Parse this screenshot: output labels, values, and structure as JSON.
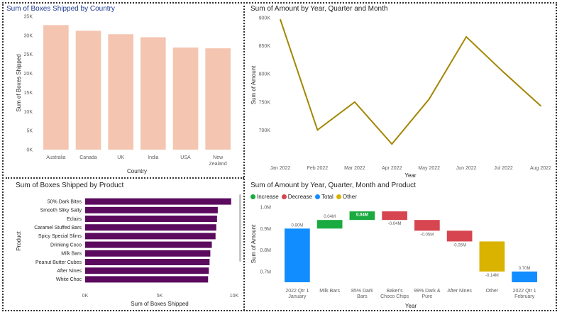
{
  "chart_data": [
    {
      "id": "country",
      "type": "bar",
      "title": "Sum of Boxes Shipped by Country",
      "xlabel": "Country",
      "ylabel": "Sum of Boxes Shipped",
      "categories": [
        "Australia",
        "Canada",
        "UK",
        "India",
        "USA",
        "New Zealand"
      ],
      "values": [
        32700,
        31200,
        30300,
        29500,
        26800,
        26600
      ],
      "ylim": [
        0,
        35000
      ],
      "yticks": [
        0,
        5000,
        10000,
        15000,
        20000,
        25000,
        30000,
        35000
      ],
      "ytick_labels": [
        "0K",
        "5K",
        "10K",
        "15K",
        "20K",
        "25K",
        "30K",
        "35K"
      ],
      "color": "#f4c5b1"
    },
    {
      "id": "amount-line",
      "type": "line",
      "title": "Sum of Amount by Year, Quarter and Month",
      "xlabel": "Year",
      "ylabel": "Sum of Amount",
      "categories": [
        "Jan 2022",
        "Feb 2022",
        "Mar 2022",
        "Apr 2022",
        "May 2022",
        "Jun 2022",
        "Jul 2022",
        "Aug 2022"
      ],
      "values": [
        897000,
        700000,
        750000,
        675000,
        755000,
        866000,
        803000,
        743000
      ],
      "ylim": [
        660000,
        900000
      ],
      "yticks": [
        700000,
        750000,
        800000,
        850000,
        900000
      ],
      "ytick_labels": [
        "700K",
        "750K",
        "800K",
        "850K",
        "900K"
      ],
      "color": "#a38600"
    },
    {
      "id": "product",
      "type": "bar",
      "orientation": "horizontal",
      "title": "Sum of Boxes Shipped by Product",
      "xlabel": "Sum of Boxes Shipped",
      "ylabel": "Product",
      "categories": [
        "50% Dark Bites",
        "Smooth Sliky Salty",
        "Eclairs",
        "Caramel Stuffed Bars",
        "Spicy Special Slims",
        "Drinking Coco",
        "Milk Bars",
        "Peanut Butter Cubes",
        "After Nines",
        "White Choc"
      ],
      "values": [
        9800,
        8900,
        8850,
        8800,
        8750,
        8500,
        8400,
        8350,
        8300,
        8250
      ],
      "xlim": [
        0,
        10000
      ],
      "xticks": [
        0,
        5000,
        10000
      ],
      "xtick_labels": [
        "0K",
        "5K",
        "10K"
      ],
      "color": "#5b0a5e"
    },
    {
      "id": "waterfall",
      "type": "waterfall",
      "title": "Sum of Amount by Year, Quarter, Month and Product",
      "xlabel": "Year",
      "ylabel": "Sum of Amount",
      "legend": [
        {
          "label": "Increase",
          "color": "#1aab40"
        },
        {
          "label": "Decrease",
          "color": "#d64550"
        },
        {
          "label": "Total",
          "color": "#118dff"
        },
        {
          "label": "Other",
          "color": "#d9b300"
        }
      ],
      "steps": [
        {
          "label": "2022 Qtr 1 January",
          "lines": [
            "2022 Qtr 1",
            "January"
          ],
          "kind": "total",
          "start": 0,
          "end": 0.9,
          "value_label": "0.90M"
        },
        {
          "label": "Milk Bars",
          "lines": [
            "Milk Bars"
          ],
          "kind": "increase",
          "start": 0.9,
          "end": 0.94,
          "value_label": "0.04M"
        },
        {
          "label": "85% Dark Bars",
          "lines": [
            "85% Dark",
            "Bars"
          ],
          "kind": "increase",
          "start": 0.94,
          "end": 0.98,
          "value_label": "0.04M"
        },
        {
          "label": "Baker's Choco Chips",
          "lines": [
            "Baker's",
            "Choco Chips"
          ],
          "kind": "decrease",
          "start": 0.98,
          "end": 0.94,
          "value_label": "-0.04M"
        },
        {
          "label": "99% Dark & Pure",
          "lines": [
            "99% Dark &",
            "Pure"
          ],
          "kind": "decrease",
          "start": 0.94,
          "end": 0.89,
          "value_label": "-0.05M"
        },
        {
          "label": "After Nines",
          "lines": [
            "After Nines"
          ],
          "kind": "decrease",
          "start": 0.89,
          "end": 0.84,
          "value_label": "-0.05M"
        },
        {
          "label": "Other",
          "lines": [
            "Other"
          ],
          "kind": "other",
          "start": 0.84,
          "end": 0.7,
          "value_label": "-0.14M"
        },
        {
          "label": "2022 Qtr 1 February",
          "lines": [
            "2022 Qtr 1",
            "February"
          ],
          "kind": "total",
          "start": 0,
          "end": 0.7,
          "value_label": "0.70M"
        }
      ],
      "ylim": [
        0.65,
        1.0
      ],
      "yticks": [
        0.7,
        0.8,
        0.9,
        1.0
      ],
      "ytick_labels": [
        "0.7M",
        "0.8M",
        "0.9M",
        "1.0M"
      ]
    }
  ]
}
